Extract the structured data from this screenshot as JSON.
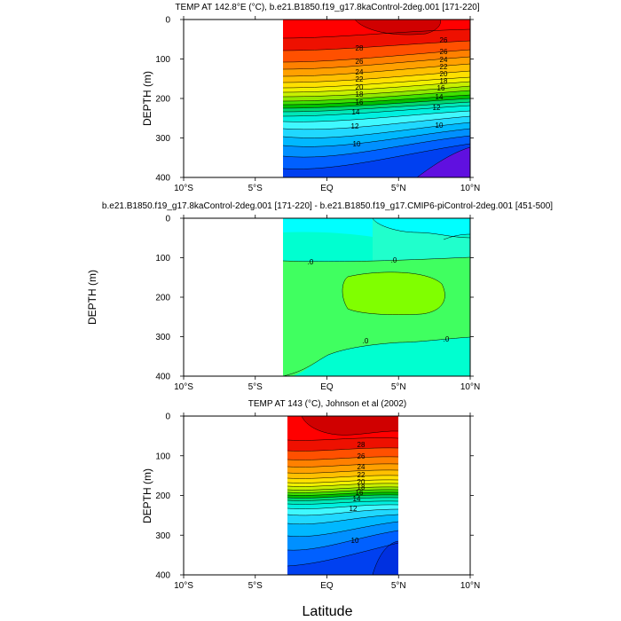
{
  "chart_data": [
    {
      "type": "contour",
      "title": "TEMP AT 142.8°E (°C), b.e21.B1850.f19_g17.8kaControl-2deg.001 [171-220]",
      "ylabel": "DEPTH (m)",
      "xlabel": "",
      "x_range": [
        -10,
        10
      ],
      "y_range": [
        0,
        400
      ],
      "y_inverted": true,
      "data_x_range": [
        -3,
        10
      ],
      "x_ticks": [
        "10°S",
        "5°S",
        "EQ",
        "5°N",
        "10°N"
      ],
      "y_ticks": [
        "0",
        "100",
        "200",
        "300",
        "400"
      ],
      "contour_levels": [
        8,
        9,
        10,
        11,
        12,
        13,
        14,
        15,
        16,
        17,
        18,
        19,
        20,
        21,
        22,
        23,
        24,
        25,
        26,
        27,
        28,
        29
      ],
      "contour_labels": [
        "28",
        "26",
        "24",
        "22",
        "20",
        "18",
        "16",
        "14",
        "12",
        "10",
        "26",
        "26",
        "24",
        "22",
        "20",
        "18",
        "16",
        "14",
        "12",
        "10"
      ]
    },
    {
      "type": "contour",
      "title": "b.e21.B1850.f19_g17.8kaControl-2deg.001 [171-220] - b.e21.B1850.f19_g17.CMIP6-piControl-2deg.001 [451-500]",
      "ylabel": "DEPTH (m)",
      "xlabel": "",
      "x_range": [
        -10,
        10
      ],
      "y_range": [
        0,
        400
      ],
      "y_inverted": true,
      "data_x_range": [
        -3,
        10
      ],
      "x_ticks": [
        "10°S",
        "5°S",
        "EQ",
        "5°N",
        "10°N"
      ],
      "y_ticks": [
        "0",
        "100",
        "200",
        "300",
        "400"
      ],
      "contour_labels": [
        ".0",
        ".0",
        ".0",
        ".0"
      ]
    },
    {
      "type": "contour",
      "title": "TEMP AT 143 (°C), Johnson et al (2002)",
      "ylabel": "DEPTH (m)",
      "xlabel": "Latitude",
      "x_range": [
        -10,
        10
      ],
      "y_range": [
        0,
        400
      ],
      "y_inverted": true,
      "data_x_range": [
        -2.6,
        5
      ],
      "x_ticks": [
        "10°S",
        "5°S",
        "EQ",
        "5°N",
        "10°N"
      ],
      "y_ticks": [
        "0",
        "100",
        "200",
        "300",
        "400"
      ],
      "contour_levels": [
        8,
        9,
        10,
        11,
        12,
        13,
        14,
        15,
        16,
        17,
        18,
        19,
        20,
        21,
        22,
        23,
        24,
        25,
        26,
        27,
        28,
        29
      ],
      "contour_labels": [
        "28",
        "26",
        "24",
        "22",
        "20",
        "18",
        "16",
        "14",
        "12",
        "10"
      ]
    }
  ]
}
